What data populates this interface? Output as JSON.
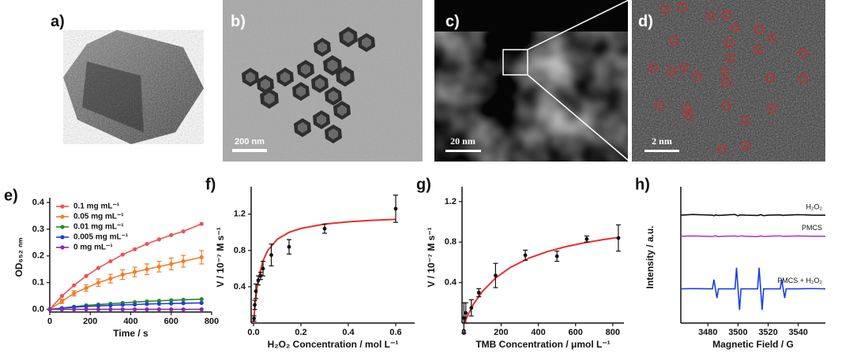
{
  "panels": [
    {
      "label": "a)"
    },
    {
      "label": "b)",
      "scale_bar": "200 nm"
    },
    {
      "label": "c)",
      "scale_bar": "20 nm"
    },
    {
      "label": "d)",
      "scale_bar": "2 nm"
    }
  ],
  "chart_data": [
    {
      "type": "line",
      "label": "e)",
      "xlabel": "Time / s",
      "ylabel": "OD₆₅₂ ₙₘ",
      "xlim": [
        0,
        800
      ],
      "ylim": [
        -0.01,
        0.4
      ],
      "xticks": [
        0,
        200,
        400,
        600,
        800
      ],
      "yticks": [
        {
          "value": 0,
          "label": "0.0"
        },
        0.1,
        0.2,
        0.3,
        0.4
      ],
      "markers": true,
      "legend": "upper left",
      "x": [
        0,
        60,
        120,
        180,
        240,
        300,
        360,
        420,
        480,
        540,
        600,
        660,
        750
      ],
      "series": [
        {
          "name": "0.1 mg mL⁻¹",
          "color": "#e8545a",
          "values": [
            0,
            0.05,
            0.09,
            0.125,
            0.155,
            0.18,
            0.205,
            0.225,
            0.245,
            0.262,
            0.278,
            0.292,
            0.32
          ]
        },
        {
          "name": "0.05 mg mL⁻¹",
          "color": "#f07f2a",
          "values": [
            0,
            0.03,
            0.06,
            0.08,
            0.1,
            0.115,
            0.13,
            0.14,
            0.15,
            0.16,
            0.17,
            0.18,
            0.195
          ],
          "errors": [
            0,
            0.008,
            0.01,
            0.012,
            0.014,
            0.016,
            0.018,
            0.018,
            0.02,
            0.02,
            0.022,
            0.022,
            0.025
          ]
        },
        {
          "name": "0.01 mg mL⁻¹",
          "color": "#2a8a2a",
          "values": [
            0,
            0.005,
            0.01,
            0.015,
            0.018,
            0.021,
            0.024,
            0.027,
            0.03,
            0.032,
            0.034,
            0.036,
            0.038
          ]
        },
        {
          "name": "0.005 mg mL⁻¹",
          "color": "#2040d0",
          "values": [
            0,
            0.004,
            0.008,
            0.011,
            0.013,
            0.015,
            0.017,
            0.018,
            0.02,
            0.021,
            0.022,
            0.023,
            0.024
          ]
        },
        {
          "name": "0 mg mL⁻¹",
          "color": "#8a2ab0",
          "values": [
            0,
            0,
            0,
            0,
            0,
            0,
            0,
            0,
            0,
            0,
            0,
            0,
            0
          ]
        }
      ]
    },
    {
      "type": "scatter",
      "label": "f)",
      "xlabel": "H₂O₂ Concentration / mol L⁻¹",
      "ylabel": "V / 10⁻⁷ M s⁻¹",
      "xlim": [
        -0.01,
        0.68
      ],
      "ylim": [
        0,
        1.45
      ],
      "xticks": [
        {
          "value": 0,
          "label": "0.0"
        },
        0.2,
        0.4,
        0.6
      ],
      "yticks": [
        0.4,
        0.8,
        1.2
      ],
      "x": [
        0.002,
        0.005,
        0.01,
        0.02,
        0.03,
        0.04,
        0.075,
        0.15,
        0.3,
        0.6
      ],
      "values": [
        0.05,
        0.2,
        0.35,
        0.47,
        0.52,
        0.6,
        0.75,
        0.84,
        1.04,
        1.26
      ],
      "errors": [
        0.03,
        0.05,
        0.08,
        0.05,
        0.04,
        0.08,
        0.12,
        0.08,
        0.05,
        0.15
      ],
      "color": "#111111",
      "fit": {
        "color": "#e53030",
        "x": [
          0,
          0.01,
          0.02,
          0.04,
          0.06,
          0.1,
          0.15,
          0.2,
          0.3,
          0.4,
          0.5,
          0.6
        ],
        "values": [
          0,
          0.3,
          0.48,
          0.686,
          0.8,
          0.923,
          1.0,
          1.043,
          1.091,
          1.116,
          1.132,
          1.143
        ]
      }
    },
    {
      "type": "scatter",
      "label": "g)",
      "xlabel": "TMB Concentration / μmol L⁻¹",
      "ylabel": "V / 10⁻⁷ M s⁻¹",
      "xlim": [
        -10,
        860
      ],
      "ylim": [
        0,
        1.3
      ],
      "xticks": [
        0,
        200,
        400,
        600,
        800
      ],
      "yticks": [
        0.4,
        0.8,
        1.2
      ],
      "x": [
        0,
        10,
        40,
        80,
        170,
        330,
        500,
        660,
        830
      ],
      "values": [
        0.05,
        0.1,
        0.15,
        0.3,
        0.47,
        0.67,
        0.66,
        0.83,
        0.84
      ],
      "errors": [
        0.15,
        0.1,
        0.08,
        0.04,
        0.12,
        0.05,
        0.05,
        0.03,
        0.13
      ],
      "color": "#111111",
      "fit": {
        "color": "#e53030",
        "x": [
          0,
          50,
          100,
          170,
          250,
          350,
          450,
          550,
          650,
          750,
          840
        ],
        "values": [
          0,
          0.183,
          0.314,
          0.445,
          0.55,
          0.642,
          0.707,
          0.756,
          0.794,
          0.825,
          0.848
        ]
      }
    },
    {
      "type": "line",
      "label": "h)",
      "xlabel": "Magnetic Field / G",
      "ylabel": "Intensity / a.u.",
      "xlim": [
        3462,
        3558
      ],
      "ylim": [
        0,
        10
      ],
      "xticks": [
        3480,
        3500,
        3520,
        3540
      ],
      "markers": false,
      "legend": "inline",
      "x": [
        3462,
        3470,
        3483,
        3484,
        3485,
        3486,
        3487,
        3490,
        3498,
        3499,
        3500,
        3501,
        3502,
        3505,
        3513,
        3514,
        3515,
        3516,
        3517,
        3520,
        3528,
        3529,
        3530,
        3531,
        3532,
        3540,
        3550,
        3558
      ],
      "series": [
        {
          "name": "H₂O₂",
          "color": "#111111",
          "values": [
            8.2,
            8.25,
            8.2,
            8.15,
            8.22,
            8.2,
            8.18,
            8.2,
            8.25,
            8.2,
            8.15,
            8.2,
            8.22,
            8.2,
            8.18,
            8.2,
            8.24,
            8.2,
            8.16,
            8.2,
            8.22,
            8.2,
            8.18,
            8.2,
            8.2,
            8.24,
            8.2,
            8.2
          ]
        },
        {
          "name": "PMCS",
          "color": "#b03ad8",
          "values": [
            6.6,
            6.62,
            6.58,
            6.6,
            6.64,
            6.6,
            6.57,
            6.6,
            6.62,
            6.6,
            6.58,
            6.6,
            6.63,
            6.6,
            6.57,
            6.6,
            6.62,
            6.6,
            6.58,
            6.6,
            6.63,
            6.6,
            6.58,
            6.6,
            6.6,
            6.62,
            6.6,
            6.6
          ]
        },
        {
          "name": "PMCS + H₂O₂",
          "color": "#1a3ee0",
          "values": [
            2.6,
            2.62,
            2.6,
            3.3,
            2.6,
            1.9,
            2.6,
            2.6,
            2.6,
            4.2,
            2.6,
            1.0,
            2.6,
            2.6,
            2.6,
            4.2,
            2.6,
            1.0,
            2.6,
            2.6,
            2.6,
            3.3,
            2.6,
            1.9,
            2.6,
            2.6,
            2.62,
            2.6
          ]
        }
      ]
    }
  ]
}
